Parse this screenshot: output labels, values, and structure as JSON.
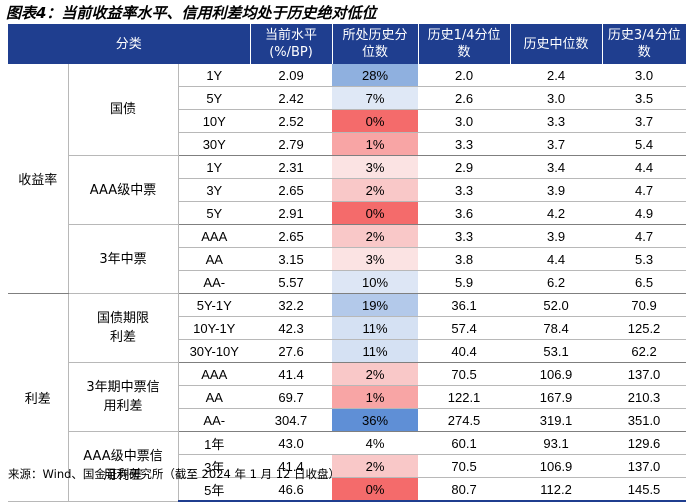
{
  "title": "图表4：当前收益率水平、信用利差均处于历史绝对低位",
  "header": {
    "category": "分类",
    "current": "当前水平\n(%/BP)",
    "percentile": "所处历史分\n位数",
    "q1": "历史1/4分位\n数",
    "median": "历史中位数",
    "q3": "历史3/4分位\n数"
  },
  "groups": [
    {
      "name": "收益率",
      "subgroups": [
        {
          "name": "国债",
          "rows": [
            {
              "term": "1Y",
              "current": "2.09",
              "percentile": "28%",
              "pct_value": 28,
              "q1": "2.0",
              "median": "2.4",
              "q3": "3.0",
              "color": "#8fb0df"
            },
            {
              "term": "5Y",
              "current": "2.42",
              "percentile": "7%",
              "pct_value": 7,
              "q1": "2.6",
              "median": "3.0",
              "q3": "3.5",
              "color": "#dfe8f6"
            },
            {
              "term": "10Y",
              "current": "2.52",
              "percentile": "0%",
              "pct_value": 0,
              "q1": "3.0",
              "median": "3.3",
              "q3": "3.7",
              "color": "#f46b6b"
            },
            {
              "term": "30Y",
              "current": "2.79",
              "percentile": "1%",
              "pct_value": 1,
              "q1": "3.3",
              "median": "3.7",
              "q3": "5.4",
              "color": "#f8a5a5"
            }
          ]
        },
        {
          "name": "AAA级中票",
          "rows": [
            {
              "term": "1Y",
              "current": "2.31",
              "percentile": "3%",
              "pct_value": 3,
              "q1": "2.9",
              "median": "3.4",
              "q3": "4.4",
              "color": "#fbe3e3"
            },
            {
              "term": "3Y",
              "current": "2.65",
              "percentile": "2%",
              "pct_value": 2,
              "q1": "3.3",
              "median": "3.9",
              "q3": "4.7",
              "color": "#f9c8c8"
            },
            {
              "term": "5Y",
              "current": "2.91",
              "percentile": "0%",
              "pct_value": 0,
              "q1": "3.6",
              "median": "4.2",
              "q3": "4.9",
              "color": "#f46b6b"
            }
          ]
        },
        {
          "name": "3年中票",
          "rows": [
            {
              "term": "AAA",
              "current": "2.65",
              "percentile": "2%",
              "pct_value": 2,
              "q1": "3.3",
              "median": "3.9",
              "q3": "4.7",
              "color": "#f9c8c8"
            },
            {
              "term": "AA",
              "current": "3.15",
              "percentile": "3%",
              "pct_value": 3,
              "q1": "3.8",
              "median": "4.4",
              "q3": "5.3",
              "color": "#fbe3e3"
            },
            {
              "term": "AA-",
              "current": "5.57",
              "percentile": "10%",
              "pct_value": 10,
              "q1": "5.9",
              "median": "6.2",
              "q3": "6.5",
              "color": "#dde6f5"
            }
          ]
        }
      ]
    },
    {
      "name": "利差",
      "subgroups": [
        {
          "name": "国债期限\n利差",
          "rows": [
            {
              "term": "5Y-1Y",
              "current": "32.2",
              "percentile": "19%",
              "pct_value": 19,
              "q1": "36.1",
              "median": "52.0",
              "q3": "70.9",
              "color": "#b3c9ea"
            },
            {
              "term": "10Y-1Y",
              "current": "42.3",
              "percentile": "11%",
              "pct_value": 11,
              "q1": "57.4",
              "median": "78.4",
              "q3": "125.2",
              "color": "#d5e1f3"
            },
            {
              "term": "30Y-10Y",
              "current": "27.6",
              "percentile": "11%",
              "pct_value": 11,
              "q1": "40.4",
              "median": "53.1",
              "q3": "62.2",
              "color": "#d5e1f3"
            }
          ]
        },
        {
          "name": "3年期中票信\n用利差",
          "rows": [
            {
              "term": "AAA",
              "current": "41.4",
              "percentile": "2%",
              "pct_value": 2,
              "q1": "70.5",
              "median": "106.9",
              "q3": "137.0",
              "color": "#f9c8c8"
            },
            {
              "term": "AA",
              "current": "69.7",
              "percentile": "1%",
              "pct_value": 1,
              "q1": "122.1",
              "median": "167.9",
              "q3": "210.3",
              "color": "#f8a5a5"
            },
            {
              "term": "AA-",
              "current": "304.7",
              "percentile": "36%",
              "pct_value": 36,
              "q1": "274.5",
              "median": "319.1",
              "q3": "351.0",
              "color": "#5f8fd6"
            }
          ]
        },
        {
          "name": "AAA级中票信\n用利差",
          "rows": [
            {
              "term": "1年",
              "current": "43.0",
              "percentile": "4%",
              "pct_value": 4,
              "q1": "60.1",
              "median": "93.1",
              "q3": "129.6",
              "color": "#ffffff"
            },
            {
              "term": "3年",
              "current": "41.4",
              "percentile": "2%",
              "pct_value": 2,
              "q1": "70.5",
              "median": "106.9",
              "q3": "137.0",
              "color": "#f9c8c8"
            },
            {
              "term": "5年",
              "current": "46.6",
              "percentile": "0%",
              "pct_value": 0,
              "q1": "80.7",
              "median": "112.2",
              "q3": "145.5",
              "color": "#f46b6b"
            }
          ]
        }
      ]
    }
  ],
  "source": "来源：Wind、国金证券研究所（截至 2024 年 1 月 12 日收盘）"
}
